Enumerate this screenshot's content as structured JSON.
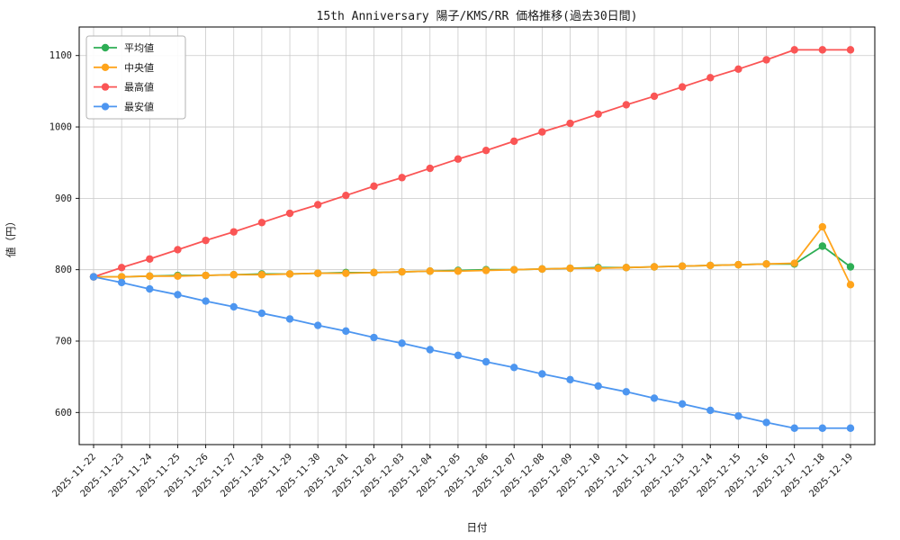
{
  "window": {
    "background": "#ffffff"
  },
  "chart_data": {
    "type": "line",
    "title": "15th Anniversary 陽子/KMS/RR 価格推移(過去30日間)",
    "xlabel": "日付",
    "ylabel": "値（円）",
    "x": [
      "2025-11-22",
      "2025-11-23",
      "2025-11-24",
      "2025-11-25",
      "2025-11-26",
      "2025-11-27",
      "2025-11-28",
      "2025-11-29",
      "2025-11-30",
      "2025-12-01",
      "2025-12-02",
      "2025-12-03",
      "2025-12-04",
      "2025-12-05",
      "2025-12-06",
      "2025-12-07",
      "2025-12-08",
      "2025-12-09",
      "2025-12-10",
      "2025-12-11",
      "2025-12-12",
      "2025-12-13",
      "2025-12-14",
      "2025-12-15",
      "2025-12-16",
      "2025-12-17",
      "2025-12-18",
      "2025-12-19"
    ],
    "series": [
      {
        "id": "mean",
        "name": "平均値",
        "color": "#2eae55",
        "values": [
          790,
          790,
          791,
          792,
          792,
          793,
          794,
          794,
          795,
          796,
          796,
          797,
          798,
          799,
          800,
          800,
          801,
          802,
          803,
          803,
          804,
          805,
          806,
          807,
          808,
          808,
          833,
          804
        ]
      },
      {
        "id": "median",
        "name": "中央値",
        "color": "#ffa41b",
        "values": [
          790,
          790,
          791,
          791,
          792,
          793,
          793,
          794,
          795,
          795,
          796,
          797,
          798,
          798,
          799,
          800,
          801,
          802,
          802,
          803,
          804,
          805,
          806,
          807,
          808,
          809,
          860,
          779
        ]
      },
      {
        "id": "max",
        "name": "最高値",
        "color": "#fa5555",
        "values": [
          790,
          803,
          815,
          828,
          841,
          853,
          866,
          879,
          891,
          904,
          917,
          929,
          942,
          955,
          967,
          980,
          993,
          1005,
          1018,
          1031,
          1043,
          1056,
          1069,
          1081,
          1094,
          1108,
          1108,
          1108
        ]
      },
      {
        "id": "min",
        "name": "最安値",
        "color": "#4d96f0",
        "values": [
          790,
          782,
          773,
          765,
          756,
          748,
          739,
          731,
          722,
          714,
          705,
          697,
          688,
          680,
          671,
          663,
          654,
          646,
          637,
          629,
          620,
          612,
          603,
          595,
          586,
          578,
          578,
          578
        ]
      }
    ],
    "yticks": [
      600,
      700,
      800,
      900,
      1000,
      1100
    ],
    "ylim": [
      555,
      1140
    ],
    "grid": true,
    "grid_color": "#c9c9c9",
    "border_color": "#000000",
    "legend_position": "upper left",
    "legend_border_color": "#b3b3b3",
    "marker": "circle",
    "marker_radius": 4.2,
    "line_width": 1.8
  }
}
